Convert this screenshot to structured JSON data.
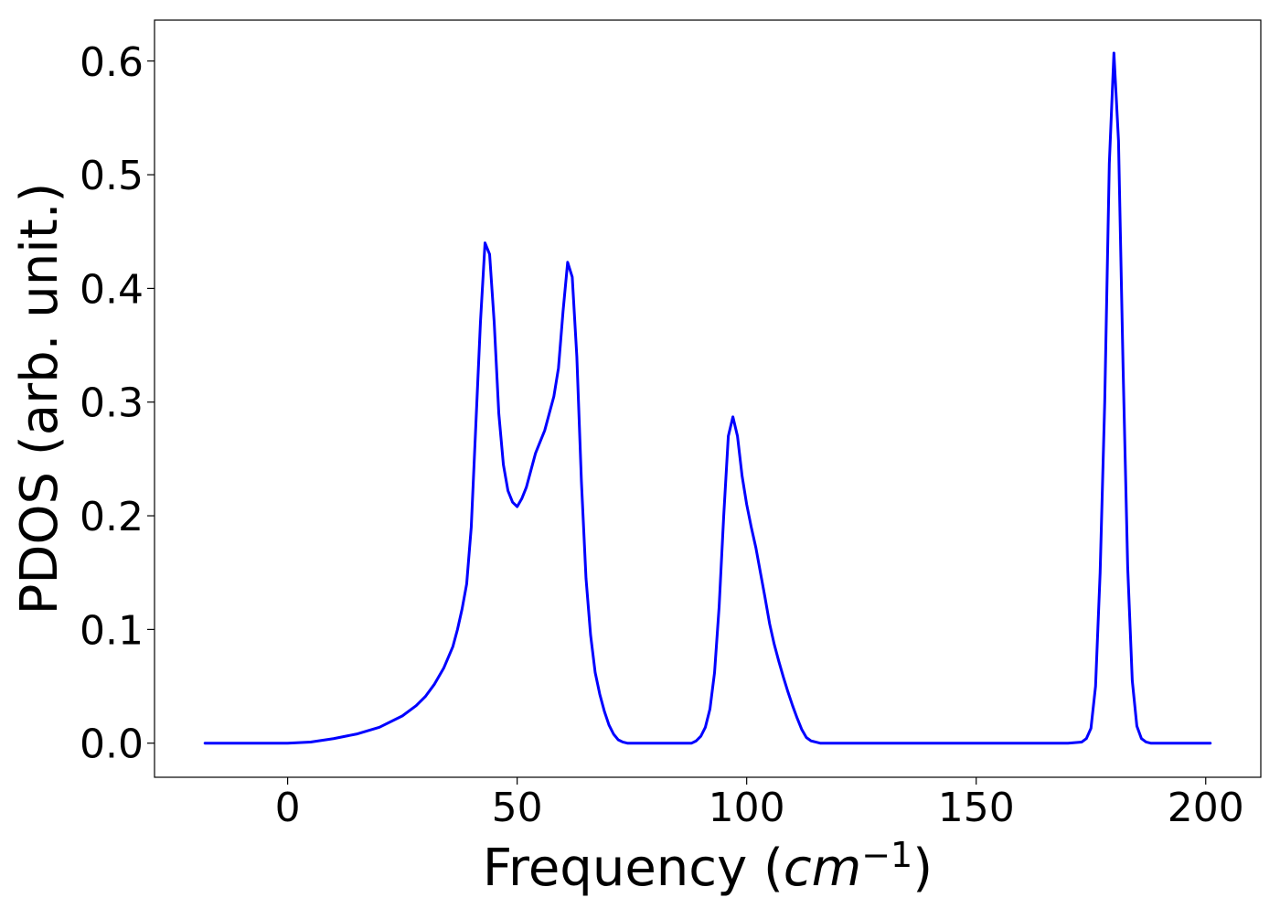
{
  "chart_data": {
    "type": "line",
    "title": "",
    "xlabel": "Frequency",
    "xlabel_unit_base": "cm",
    "xlabel_unit_exponent": "−1",
    "ylabel": "PDOS (arb. unit.)",
    "xlim": [
      -29,
      212
    ],
    "ylim": [
      -0.03,
      0.636
    ],
    "xticks": [
      0,
      50,
      100,
      150,
      200
    ],
    "xtick_labels": [
      "0",
      "50",
      "100",
      "150",
      "200"
    ],
    "yticks": [
      0.0,
      0.1,
      0.2,
      0.3,
      0.4,
      0.5,
      0.6
    ],
    "ytick_labels": [
      "0.0",
      "0.1",
      "0.2",
      "0.3",
      "0.4",
      "0.5",
      "0.6"
    ],
    "grid": false,
    "legend": "none",
    "series": [
      {
        "color": "#0000ff",
        "x": [
          -18,
          0,
          5,
          10,
          15,
          20,
          25,
          28,
          30,
          32,
          34,
          36,
          37,
          38,
          39,
          40,
          41,
          42,
          43,
          44,
          45,
          46,
          47,
          48,
          49,
          50,
          51,
          52,
          53,
          54,
          55,
          56,
          57,
          58,
          59,
          60,
          61,
          62,
          63,
          64,
          65,
          66,
          67,
          68,
          69,
          70,
          71,
          72,
          73,
          74,
          75,
          76,
          80,
          85,
          88,
          89,
          90,
          91,
          92,
          93,
          94,
          95,
          96,
          97,
          98,
          99,
          100,
          101,
          102,
          103,
          104,
          105,
          106,
          107,
          108,
          109,
          110,
          111,
          112,
          113,
          114,
          115,
          116,
          117,
          118,
          120,
          130,
          150,
          170,
          173,
          174,
          175,
          176,
          177,
          178,
          179,
          180,
          181,
          182,
          183,
          184,
          185,
          186,
          187,
          188,
          189,
          190,
          195,
          201
        ],
        "y": [
          0.0,
          0.0,
          0.001,
          0.004,
          0.008,
          0.014,
          0.024,
          0.033,
          0.041,
          0.052,
          0.066,
          0.085,
          0.1,
          0.118,
          0.14,
          0.19,
          0.28,
          0.37,
          0.44,
          0.43,
          0.37,
          0.29,
          0.245,
          0.222,
          0.212,
          0.208,
          0.215,
          0.225,
          0.24,
          0.255,
          0.265,
          0.275,
          0.29,
          0.305,
          0.33,
          0.38,
          0.423,
          0.41,
          0.34,
          0.23,
          0.145,
          0.095,
          0.062,
          0.043,
          0.028,
          0.016,
          0.008,
          0.003,
          0.001,
          0.0,
          0.0,
          0.0,
          0.0,
          0.0,
          0.0,
          0.002,
          0.006,
          0.014,
          0.03,
          0.062,
          0.12,
          0.2,
          0.27,
          0.287,
          0.27,
          0.235,
          0.21,
          0.19,
          0.172,
          0.15,
          0.128,
          0.105,
          0.087,
          0.072,
          0.058,
          0.045,
          0.033,
          0.022,
          0.012,
          0.005,
          0.002,
          0.001,
          0.0,
          0.0,
          0.0,
          0.0,
          0.0,
          0.0,
          0.0,
          0.001,
          0.004,
          0.013,
          0.05,
          0.15,
          0.3,
          0.51,
          0.607,
          0.53,
          0.33,
          0.155,
          0.055,
          0.015,
          0.004,
          0.001,
          0.0,
          0.0,
          0.0,
          0.0,
          0.0
        ]
      }
    ]
  }
}
